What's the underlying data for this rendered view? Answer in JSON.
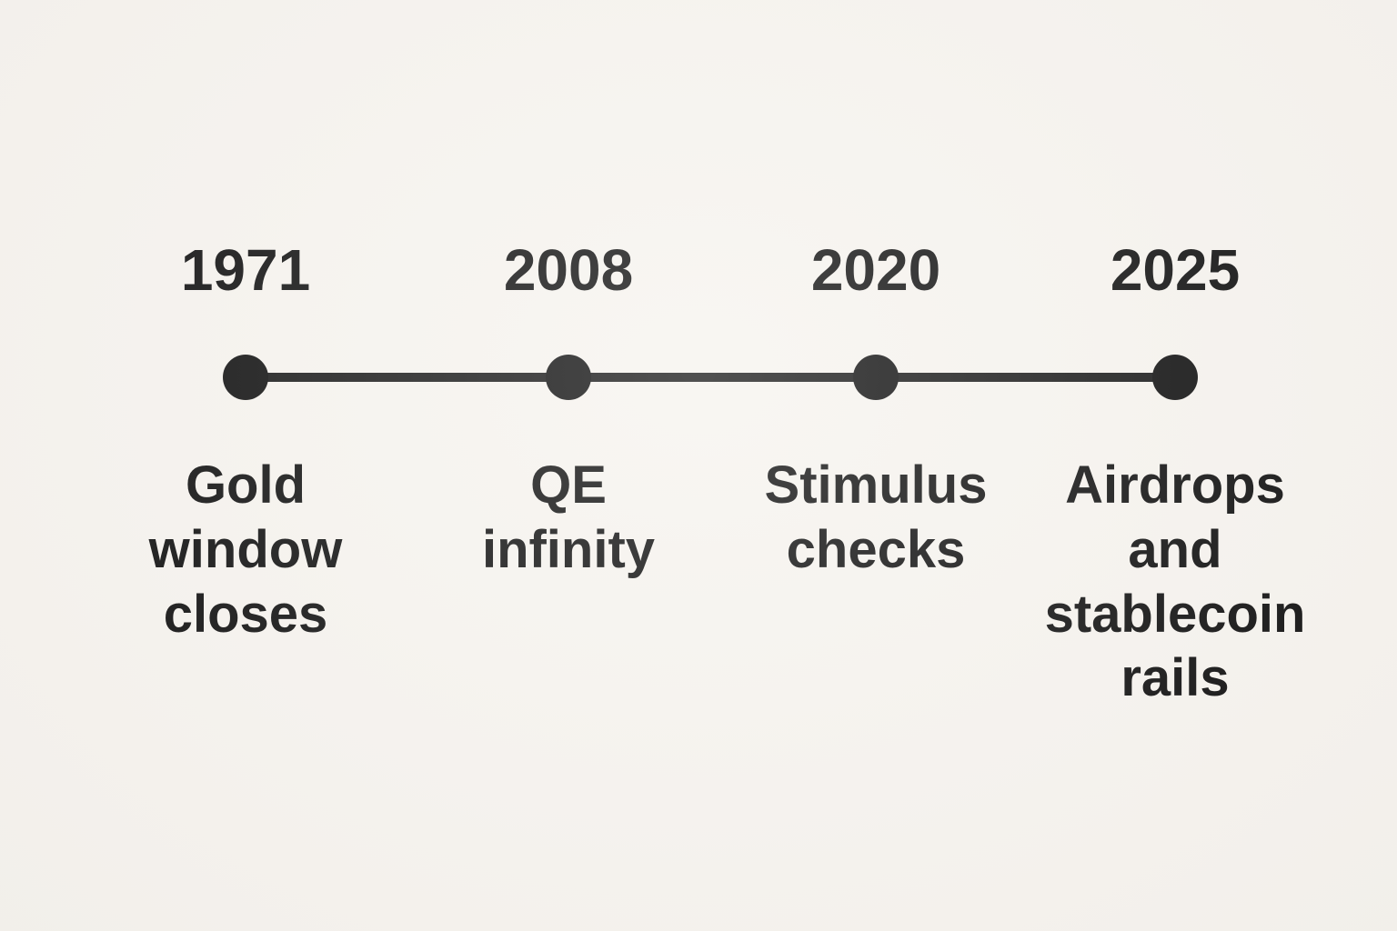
{
  "canvas": {
    "background_color": "#f6f3ee",
    "ink_color": "#0d0d0d"
  },
  "chart_data": {
    "type": "table",
    "title": "",
    "description": "Horizontal timeline with four milestones",
    "events": [
      {
        "year": "1971",
        "label": "Gold window closes"
      },
      {
        "year": "2008",
        "label": "QE infinity"
      },
      {
        "year": "2020",
        "label": "Stimulus checks"
      },
      {
        "year": "2025",
        "label": "Airdrops and stablecoin rails"
      }
    ]
  },
  "timeline": {
    "events": [
      {
        "year": "1971",
        "label": "Gold\nwindow\ncloses"
      },
      {
        "year": "2008",
        "label": "QE\ninfinity"
      },
      {
        "year": "2020",
        "label": "Stimulus\nchecks"
      },
      {
        "year": "2025",
        "label": "Airdrops\nand\nstablecoin\nrails"
      }
    ]
  }
}
